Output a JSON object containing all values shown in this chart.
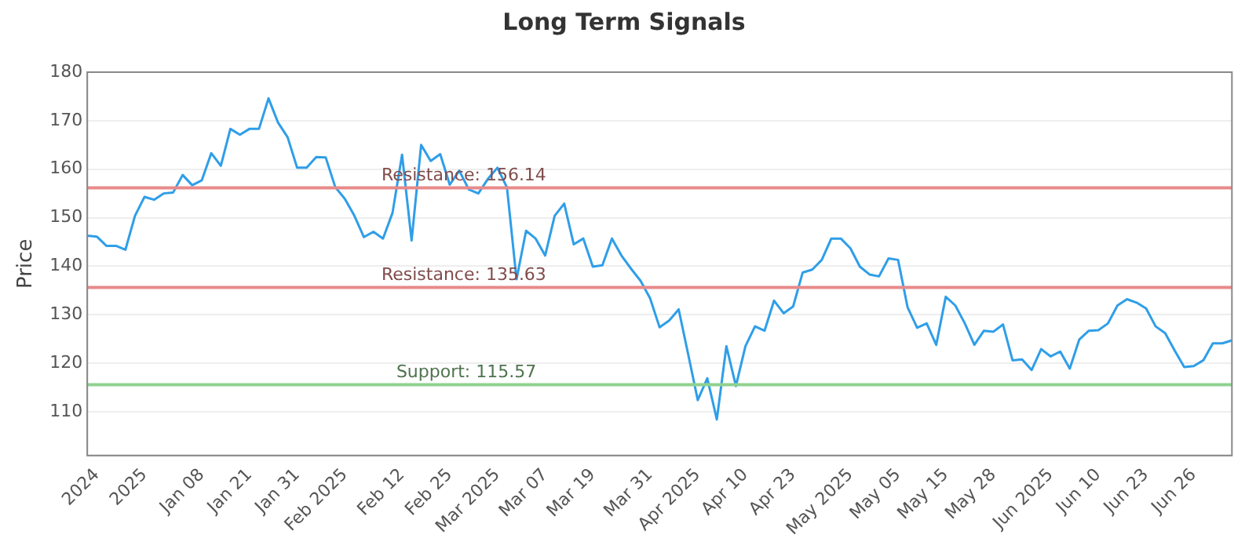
{
  "chart_data": {
    "type": "line",
    "title": "Long Term Signals",
    "ylabel": "Price",
    "categories": [
      null,
      "2024",
      null,
      null,
      null,
      null,
      "2025",
      null,
      null,
      null,
      null,
      null,
      "Jan 08",
      null,
      null,
      null,
      null,
      "Jan 21",
      null,
      null,
      null,
      null,
      "Jan 31",
      null,
      null,
      null,
      null,
      "Feb 2025",
      null,
      null,
      null,
      null,
      null,
      "Feb 12",
      null,
      null,
      null,
      null,
      "Feb 25",
      null,
      null,
      null,
      null,
      "Mar 2025",
      null,
      null,
      null,
      null,
      "Mar 07",
      null,
      null,
      null,
      null,
      "Mar 19",
      null,
      null,
      null,
      null,
      null,
      "Mar 31",
      null,
      null,
      null,
      null,
      "Apr 2025",
      null,
      null,
      null,
      null,
      "Apr 10",
      null,
      null,
      null,
      null,
      "Apr 23",
      null,
      null,
      null,
      null,
      null,
      "May 2025",
      null,
      null,
      null,
      null,
      "May 05",
      null,
      null,
      null,
      null,
      "May 15",
      null,
      null,
      null,
      null,
      "May 28",
      null,
      null,
      null,
      null,
      null,
      "Jun 2025",
      null,
      null,
      null,
      null,
      "Jun 10",
      null,
      null,
      null,
      null,
      "Jun 23",
      null,
      null,
      null,
      null,
      "Jun 26",
      null,
      null,
      null,
      null
    ],
    "series": [
      {
        "color": "#2f9ee8",
        "values": [
          146.3,
          146.1,
          144.2,
          144.2,
          143.4,
          150.4,
          154.3,
          153.7,
          155,
          155.2,
          158.8,
          156.7,
          157.7,
          163.3,
          160.7,
          168.3,
          167.1,
          168.3,
          168.3,
          174.6,
          169.6,
          166.6,
          160.3,
          160.3,
          162.5,
          162.4,
          156.3,
          153.9,
          150.4,
          146.0,
          147.1,
          145.7,
          151,
          163,
          145.3,
          165,
          161.7,
          163.1,
          156.8,
          159.7,
          155.8,
          155,
          158,
          160.3,
          156.2,
          137.3,
          147.3,
          145.7,
          142.2,
          150.4,
          152.9,
          144.5,
          145.7,
          139.9,
          140.2,
          145.7,
          142.2,
          139.5,
          137,
          133.4,
          127.4,
          128.8,
          131.1,
          121.8,
          112.4,
          116.9,
          108.4,
          123.5,
          115.3,
          123.5,
          127.6,
          126.7,
          132.9,
          130.3,
          131.7,
          138.7,
          139.3,
          141.3,
          145.7,
          145.7,
          143.7,
          139.9,
          138.3,
          137.9,
          141.6,
          141.3,
          131.5,
          127.3,
          128.2,
          123.8,
          133.7,
          131.9,
          128.2,
          123.8,
          126.7,
          126.5,
          128,
          120.6,
          120.8,
          118.6,
          122.9,
          121.4,
          122.4,
          118.9,
          124.9,
          126.7,
          126.8,
          128.2,
          131.9,
          133.2,
          132.5,
          131.3,
          127.6,
          126.2,
          122.6,
          119.2,
          119.4,
          120.6,
          124.1,
          124.1,
          124.7
        ]
      }
    ],
    "ylim": [
      101,
      180
    ],
    "yticks": [
      110,
      120,
      130,
      140,
      150,
      160,
      170,
      180
    ],
    "ref_lines": [
      {
        "axis": "y",
        "value": 156.14,
        "label": "Resistance: 156.14",
        "color": "#e88a8a"
      },
      {
        "axis": "y",
        "value": 135.63,
        "label": "Resistance: 135.63",
        "color": "#e88a8a"
      },
      {
        "axis": "y",
        "value": 115.57,
        "label": "Support: 115.57",
        "color": "#8fd18f"
      }
    ],
    "grid": "y",
    "legend": false,
    "marker": "none",
    "line_style": "solid"
  }
}
